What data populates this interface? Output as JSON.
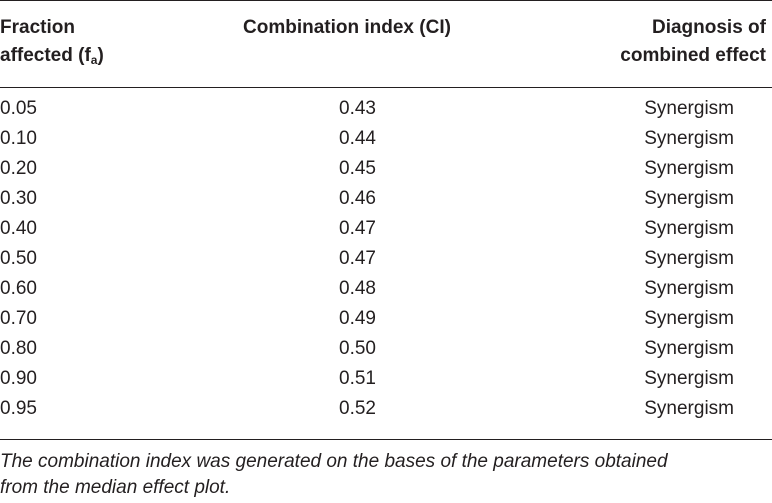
{
  "headers": {
    "fraction_affected_line1": "Fraction",
    "fraction_affected_line2": "affected (f",
    "fraction_affected_sub": "a",
    "fraction_affected_close": ")",
    "combination_index": "Combination index (CI)",
    "diagnosis_line1": "Diagnosis of",
    "diagnosis_line2": "combined effect"
  },
  "rows": [
    {
      "fa": "0.05",
      "ci": "0.43",
      "diagnosis": "Synergism"
    },
    {
      "fa": "0.10",
      "ci": "0.44",
      "diagnosis": "Synergism"
    },
    {
      "fa": "0.20",
      "ci": "0.45",
      "diagnosis": "Synergism"
    },
    {
      "fa": "0.30",
      "ci": "0.46",
      "diagnosis": "Synergism"
    },
    {
      "fa": "0.40",
      "ci": "0.47",
      "diagnosis": "Synergism"
    },
    {
      "fa": "0.50",
      "ci": "0.47",
      "diagnosis": "Synergism"
    },
    {
      "fa": "0.60",
      "ci": "0.48",
      "diagnosis": "Synergism"
    },
    {
      "fa": "0.70",
      "ci": "0.49",
      "diagnosis": "Synergism"
    },
    {
      "fa": "0.80",
      "ci": "0.50",
      "diagnosis": "Synergism"
    },
    {
      "fa": "0.90",
      "ci": "0.51",
      "diagnosis": "Synergism"
    },
    {
      "fa": "0.95",
      "ci": "0.52",
      "diagnosis": "Synergism"
    }
  ],
  "footnote": {
    "line1": "The combination index was generated on the bases of the parameters obtained",
    "line2": "from the median effect plot."
  }
}
